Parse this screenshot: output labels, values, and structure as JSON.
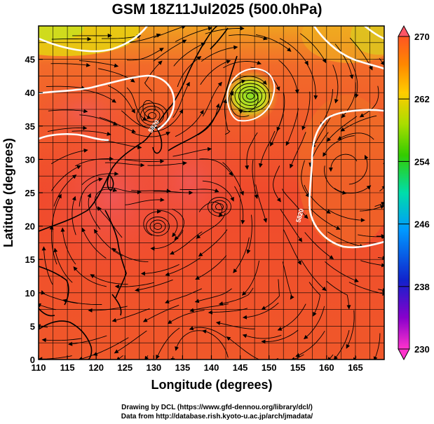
{
  "title": "GSM 18Z11Jul2025 (500.0hPa)",
  "x_axis": {
    "label": "Longitude (degrees)",
    "ticks": [
      "110",
      "115",
      "120",
      "125",
      "130",
      "135",
      "140",
      "145",
      "150",
      "155",
      "160",
      "165"
    ],
    "range": [
      110,
      170
    ]
  },
  "y_axis": {
    "label": "Latitude (degrees)",
    "ticks": [
      "0",
      "5",
      "10",
      "15",
      "20",
      "25",
      "30",
      "35",
      "40",
      "45"
    ],
    "range": [
      0,
      50
    ]
  },
  "colorbar": {
    "ticks": [
      "230",
      "238",
      "246",
      "254",
      "262",
      "270"
    ],
    "range": [
      230,
      270
    ],
    "colors": [
      "#ff33cc",
      "#8800cc",
      "#1122cc",
      "#0099ff",
      "#00ddaa",
      "#33cc00",
      "#aadd00",
      "#ffcc00",
      "#ff8800",
      "#ff5522"
    ]
  },
  "contours": {
    "label": "5820"
  },
  "credits": {
    "line1": "Drawing by DCL (https://www.gfd-dennou.org/library/dcl/)",
    "line2": "Data from http://database.rish.kyoto-u.ac.jp/arch/jmadata/"
  }
}
